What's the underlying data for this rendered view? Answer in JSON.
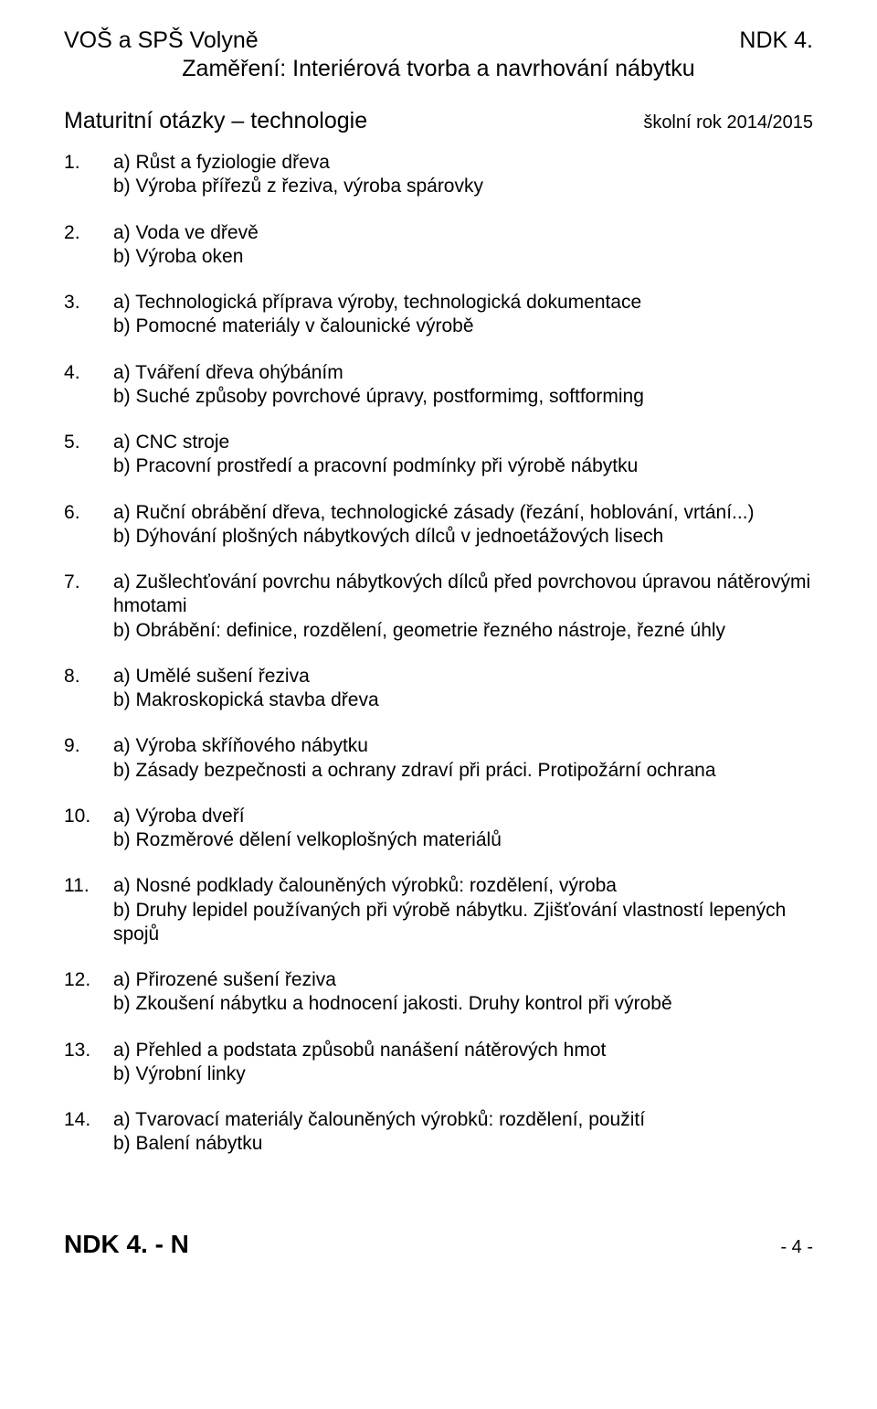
{
  "header": {
    "school": "VOŠ a SPŠ Volyně",
    "course_code": "NDK 4.",
    "focus": "Zaměření: Interiérová tvorba a navrhování nábytku"
  },
  "subhead": {
    "subject": "Maturitní otázky – technologie",
    "year": "školní rok 2014/2015"
  },
  "questions": [
    {
      "a": "a) Růst a fyziologie dřeva",
      "b": "b) Výroba přířezů z řeziva, výroba spárovky"
    },
    {
      "a": "a) Voda ve dřevě",
      "b": "b) Výroba oken"
    },
    {
      "a": "a) Technologická příprava výroby, technologická dokumentace",
      "b": "b) Pomocné materiály v čalounické výrobě"
    },
    {
      "a": "a) Tváření dřeva ohýbáním",
      "b": "b) Suché způsoby povrchové úpravy, postformimg, softforming"
    },
    {
      "a": "a) CNC stroje",
      "b": "b) Pracovní prostředí a pracovní podmínky při výrobě nábytku"
    },
    {
      "a": "a) Ruční obrábění dřeva, technologické zásady (řezání, hoblování, vrtání...)",
      "b": "b) Dýhování plošných nábytkových dílců v jednoetážových lisech"
    },
    {
      "a": "a) Zušlechťování povrchu nábytkových dílců před povrchovou úpravou nátěrovými hmotami",
      "b": "b) Obrábění: definice, rozdělení, geometrie řezného nástroje, řezné úhly"
    },
    {
      "a": "a) Umělé sušení řeziva",
      "b": "b) Makroskopická stavba dřeva"
    },
    {
      "a": "a) Výroba skříňového nábytku",
      "b": "b) Zásady bezpečnosti a ochrany zdraví při práci. Protipožární ochrana"
    },
    {
      "a": "a) Výroba dveří",
      "b": "b) Rozměrové dělení velkoplošných materiálů"
    },
    {
      "a": "a) Nosné podklady čalouněných výrobků: rozdělení, výroba",
      "b": "b) Druhy lepidel používaných při výrobě nábytku. Zjišťování vlastností lepených spojů"
    },
    {
      "a": "a) Přirozené sušení řeziva",
      "b": "b) Zkoušení nábytku a hodnocení jakosti. Druhy kontrol při výrobě"
    },
    {
      "a": "a) Přehled a podstata způsobů nanášení nátěrových hmot",
      "b": "b) Výrobní linky"
    },
    {
      "a": "a) Tvarovací materiály čalouněných výrobků: rozdělení, použití",
      "b": "b) Balení nábytku"
    }
  ],
  "footer": {
    "left": "NDK 4. - N",
    "right": "- 4 -"
  }
}
